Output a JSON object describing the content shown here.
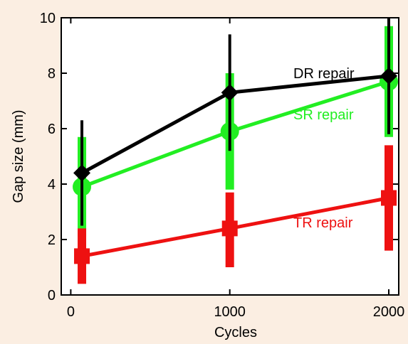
{
  "chart_data": {
    "type": "line",
    "title": "",
    "xlabel": "Cycles",
    "ylabel": "Gap size (mm)",
    "xlim": [
      -60,
      2000
    ],
    "ylim": [
      0,
      10
    ],
    "xticks": [
      0,
      1000,
      2000
    ],
    "xtick_labels": [
      "0",
      "1000",
      "2000"
    ],
    "yticks": [
      0,
      2,
      4,
      6,
      8,
      10
    ],
    "ytick_labels": [
      "0",
      "2",
      "4",
      "6",
      "8",
      "10"
    ],
    "grid": false,
    "series": [
      {
        "name": "DR repair",
        "color": "#000000",
        "marker": "diamond",
        "x": [
          70,
          1000,
          2000
        ],
        "y": [
          4.4,
          7.3,
          7.9
        ],
        "err_low": [
          2.5,
          5.2,
          5.8
        ],
        "err_high": [
          6.3,
          9.4,
          10.0
        ]
      },
      {
        "name": "SR repair",
        "color": "#22ee22",
        "marker": "circle",
        "x": [
          70,
          1000,
          2000
        ],
        "y": [
          3.9,
          5.9,
          7.7
        ],
        "err_low": [
          2.1,
          3.8,
          5.7
        ],
        "err_high": [
          5.7,
          8.0,
          9.7
        ]
      },
      {
        "name": "TR repair",
        "color": "#ee1111",
        "marker": "square",
        "x": [
          70,
          1000,
          2000
        ],
        "y": [
          1.4,
          2.4,
          3.5
        ],
        "err_low": [
          0.4,
          1.0,
          1.6
        ],
        "err_high": [
          2.4,
          3.7,
          5.4
        ]
      }
    ]
  }
}
